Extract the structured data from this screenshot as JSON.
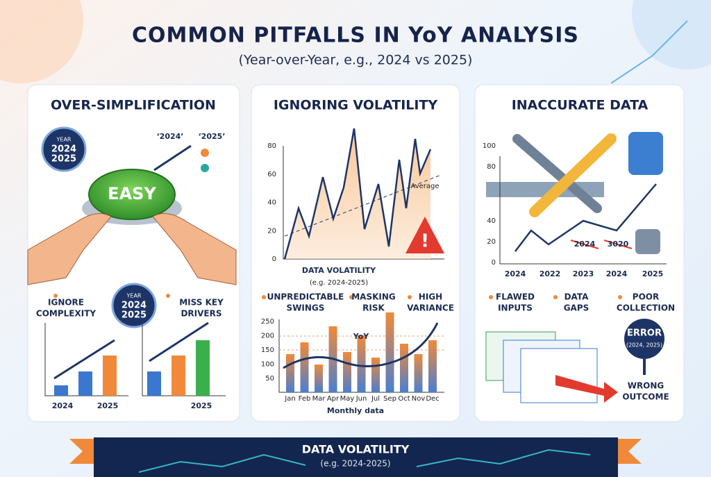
{
  "header": {
    "title": "COMMON PITFALLS IN YoY ANALYSIS",
    "subtitle": "(Year-over-Year, e.g., 2024 vs 2025)"
  },
  "panels": [
    {
      "title": "OVER-SIMPLIFICATION",
      "badge_top": [
        "YEAR",
        "2024",
        "2025"
      ],
      "quotes": [
        "‘2024’",
        "‘2025’"
      ],
      "button": "EASY",
      "badge_mid": [
        "YEAR",
        "2024",
        "2025"
      ],
      "bullets": [
        [
          "IGNORE",
          "COMPLEXITY"
        ],
        [
          "MISS KEY",
          "DRIVERS"
        ]
      ],
      "x_labels": [
        "2024",
        "2025",
        "2025"
      ]
    },
    {
      "title": "IGNORING VOLATILITY",
      "y_ticks": [
        "80",
        "60",
        "40",
        "20",
        "0"
      ],
      "average": "Average",
      "caption": "DATA VOLATILITY",
      "caption_sub": "(e.g. 2024-2025)",
      "bullets": [
        [
          "UNPREDICTABLE",
          "SWINGS"
        ],
        [
          "MASKING",
          "RISK"
        ],
        [
          "HIGH",
          "VARIANCE"
        ]
      ],
      "bar_ticks": [
        "250",
        "200",
        "150",
        "100",
        "50"
      ],
      "yoy": "YoY",
      "months": [
        "Jan",
        "Feb",
        "Mar",
        "Apr",
        "May",
        "Jun",
        "Jul",
        "Sep",
        "Oct",
        "Nov",
        "Dec"
      ],
      "x_title": "Monthly data"
    },
    {
      "title": "INACCURATE DATA",
      "y_ticks_top": [
        "100",
        "80"
      ],
      "y_ticks": [
        "40",
        "20",
        "0"
      ],
      "x_labels": [
        "2024",
        "2022",
        "2023",
        "2024",
        "2025"
      ],
      "crossed": [
        "2024",
        "3020"
      ],
      "bullets": [
        [
          "FLAWED",
          "INPUTS"
        ],
        [
          "DATA",
          "GAPS"
        ],
        [
          "POOR",
          "COLLECTION"
        ]
      ],
      "error": "ERROR",
      "error_sub": "(2024, 2025)",
      "outcome": [
        "WRONG",
        "OUTCOME"
      ]
    }
  ],
  "banner": {
    "title": "DATA VOLATILITY",
    "subtitle": "(e.g. 2024-2025)"
  }
}
